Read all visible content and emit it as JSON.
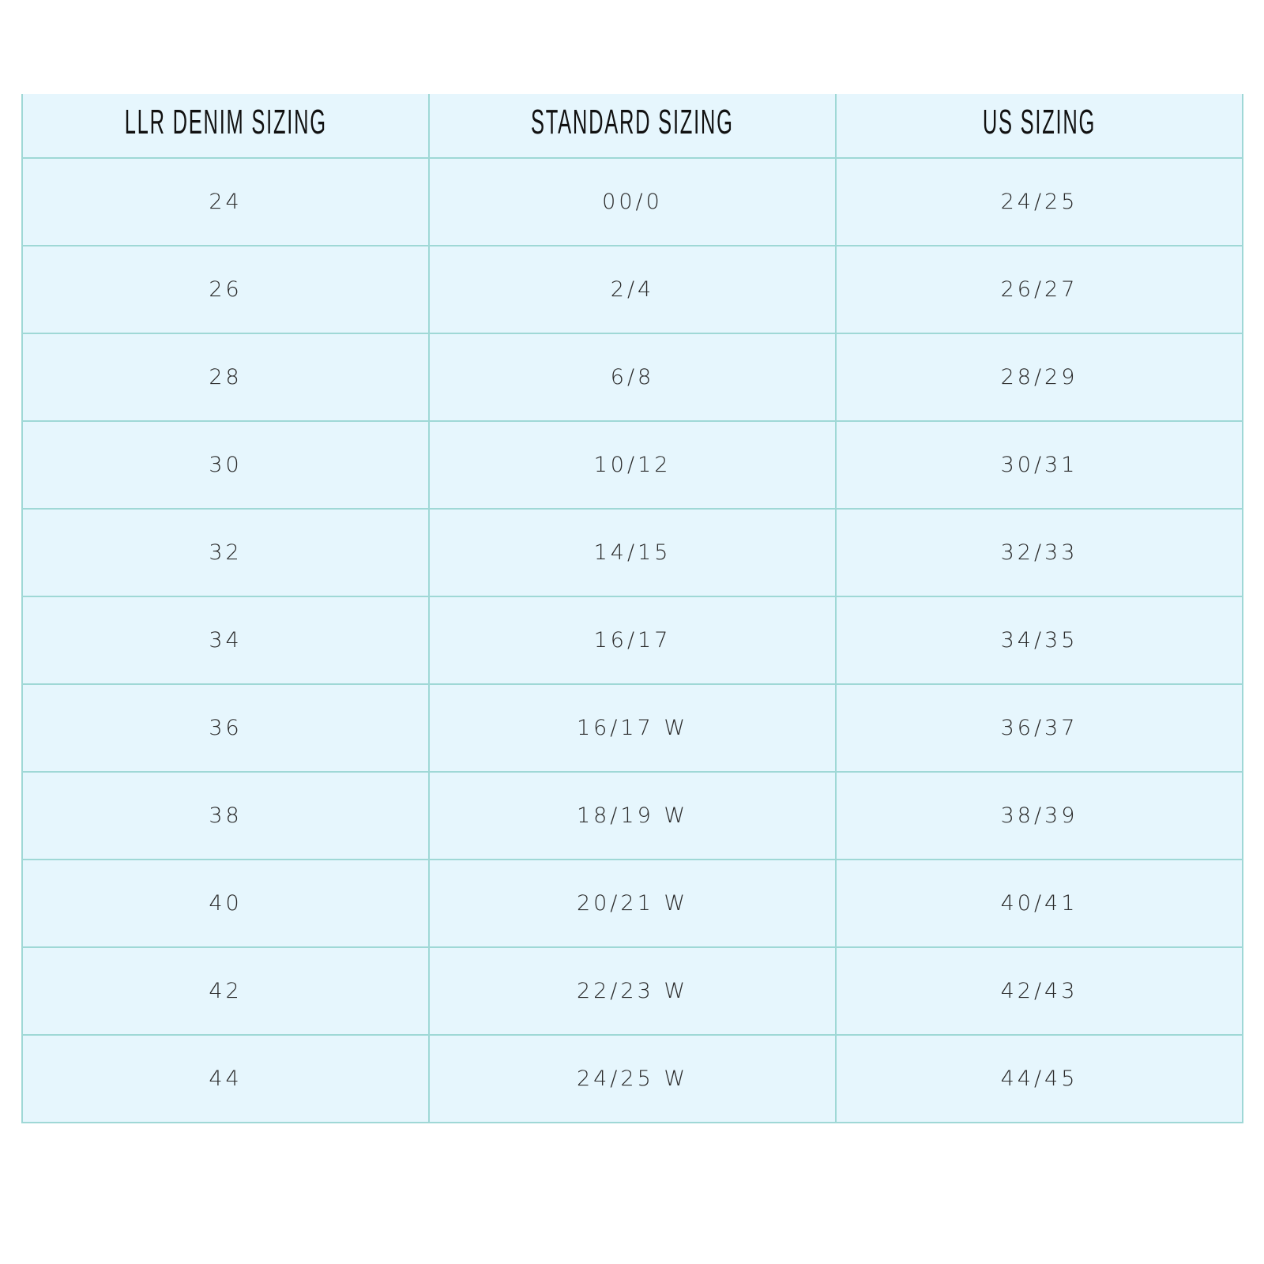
{
  "table": {
    "headers": [
      "LLR DENIM SIZING",
      "STANDARD SIZING",
      "US SIZING"
    ],
    "rows": [
      [
        "24",
        "00/0",
        "24/25"
      ],
      [
        "26",
        "2/4",
        "26/27"
      ],
      [
        "28",
        "6/8",
        "28/29"
      ],
      [
        "30",
        "10/12",
        "30/31"
      ],
      [
        "32",
        "14/15",
        "32/33"
      ],
      [
        "34",
        "16/17",
        "34/35"
      ],
      [
        "36",
        "16/17 W",
        "36/37"
      ],
      [
        "38",
        "18/19 W",
        "38/39"
      ],
      [
        "40",
        "20/21 W",
        "40/41"
      ],
      [
        "42",
        "22/23 W",
        "42/43"
      ],
      [
        "44",
        "24/25 W",
        "44/45"
      ]
    ]
  },
  "colors": {
    "background": "#e6f6fd",
    "border": "#9fd8d6"
  }
}
